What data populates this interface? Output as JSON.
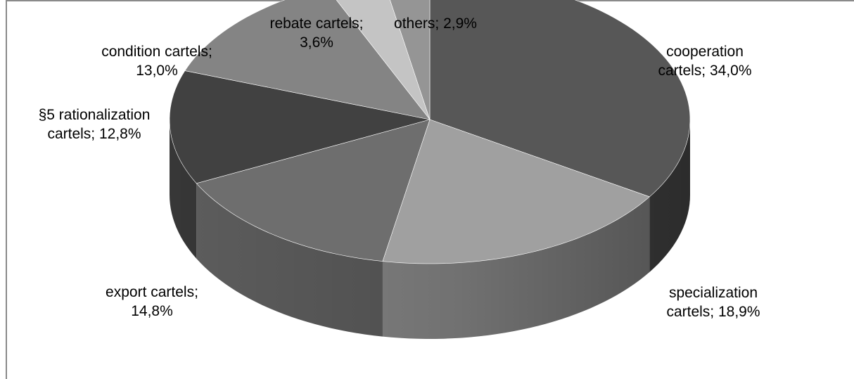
{
  "chart_data": {
    "type": "pie",
    "style": "3d",
    "title": "",
    "slices": [
      {
        "label_lines": [
          "cooperation",
          "cartels; 34,0%"
        ],
        "value": 34.0,
        "color": "#575757"
      },
      {
        "label_lines": [
          "specialization",
          "cartels; 18,9%"
        ],
        "value": 18.9,
        "color": "#a0a0a0"
      },
      {
        "label_lines": [
          "export cartels;",
          "14,8%"
        ],
        "value": 14.8,
        "color": "#6e6e6e"
      },
      {
        "label_lines": [
          "§5 rationalization",
          "cartels; 12,8%"
        ],
        "value": 12.8,
        "color": "#414141"
      },
      {
        "label_lines": [
          "condition cartels;",
          "13,0%"
        ],
        "value": 13.0,
        "color": "#848484"
      },
      {
        "label_lines": [
          "rebate cartels;",
          "3,6%"
        ],
        "value": 3.6,
        "color": "#c4c4c4"
      },
      {
        "label_lines": [
          "others; 2,9%"
        ],
        "value": 2.9,
        "color": "#959595"
      }
    ],
    "start_angle_deg": 90,
    "direction": "clockwise",
    "legend": "none"
  }
}
